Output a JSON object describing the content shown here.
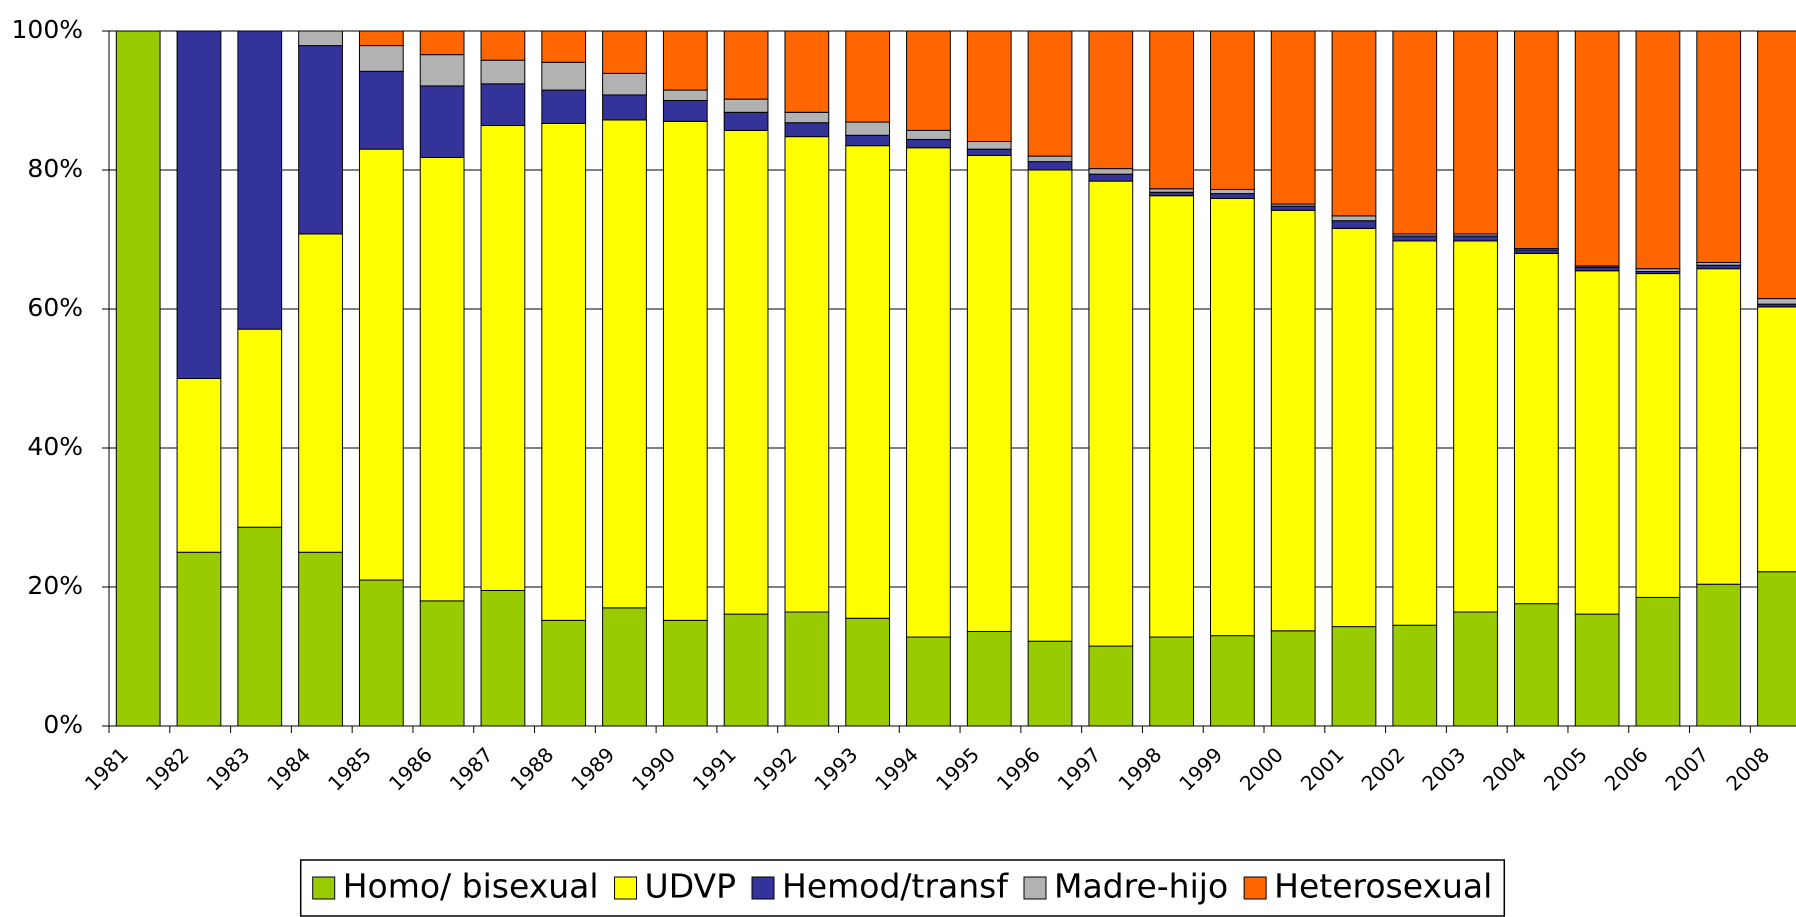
{
  "chart_data": {
    "type": "stacked_bar_100",
    "categories": [
      "1981",
      "1982",
      "1983",
      "1984",
      "1985",
      "1986",
      "1987",
      "1988",
      "1989",
      "1990",
      "1991",
      "1992",
      "1993",
      "1994",
      "1995",
      "1996",
      "1997",
      "1998",
      "1999",
      "2000",
      "2001",
      "2002",
      "2003",
      "2004",
      "2005",
      "2006",
      "2007",
      "2008"
    ],
    "series": [
      {
        "name": "Homo/ bisexual",
        "color": "#99cc00",
        "values": [
          100,
          25,
          28.6,
          25,
          21,
          18,
          19.5,
          15.2,
          17,
          15.2,
          16.1,
          16.4,
          15.5,
          12.8,
          13.6,
          12.2,
          11.5,
          12.8,
          13,
          13.7,
          14.3,
          14.5,
          16.4,
          17.6,
          16.1,
          18.5,
          20.4,
          22.2
        ]
      },
      {
        "name": "UDVP",
        "color": "#ffff00",
        "values": [
          0,
          25,
          28.5,
          45.8,
          62,
          63.8,
          66.9,
          71.5,
          70.2,
          71.8,
          69.6,
          68.4,
          68,
          70.4,
          68.5,
          67.8,
          66.9,
          63.5,
          62.9,
          60.5,
          57.3,
          55.3,
          53.4,
          50.4,
          49.4,
          46.6,
          45.4,
          38.1
        ]
      },
      {
        "name": "Hemod/transf",
        "color": "#333399",
        "values": [
          0,
          50,
          42.9,
          27.1,
          11.2,
          10.3,
          6,
          4.8,
          3.6,
          3,
          2.6,
          2,
          1.5,
          1.2,
          0.9,
          1.2,
          1,
          0.5,
          0.7,
          0.6,
          1.1,
          0.7,
          0.7,
          0.5,
          0.5,
          0.3,
          0.5,
          0.4
        ]
      },
      {
        "name": "Madre-hijo",
        "color": "#b2b2b2",
        "values": [
          0,
          0,
          0,
          2.1,
          3.7,
          4.5,
          3.4,
          4,
          3.1,
          1.5,
          1.9,
          1.5,
          1.9,
          1.3,
          1.1,
          0.8,
          0.8,
          0.5,
          0.6,
          0.3,
          0.7,
          0.3,
          0.3,
          0.2,
          0.2,
          0.4,
          0.4,
          0.8
        ]
      },
      {
        "name": "Heterosexual",
        "color": "#ff6600",
        "values": [
          0,
          0,
          0,
          0,
          2.1,
          3.4,
          4.2,
          4.5,
          6.1,
          8.5,
          9.8,
          11.7,
          13.1,
          14.3,
          15.9,
          18,
          19.8,
          22.7,
          22.8,
          24.9,
          26.6,
          29.2,
          29.2,
          31.3,
          33.8,
          34.2,
          33.3,
          38.5
        ]
      }
    ],
    "ylim": [
      0,
      100
    ],
    "yticks": [
      {
        "value": 0,
        "label": "0%"
      },
      {
        "value": 20,
        "label": "20%"
      },
      {
        "value": 40,
        "label": "40%"
      },
      {
        "value": 60,
        "label": "60%"
      },
      {
        "value": 80,
        "label": "80%"
      },
      {
        "value": 100,
        "label": "100%"
      }
    ],
    "grid": true,
    "legend": "bottom"
  }
}
